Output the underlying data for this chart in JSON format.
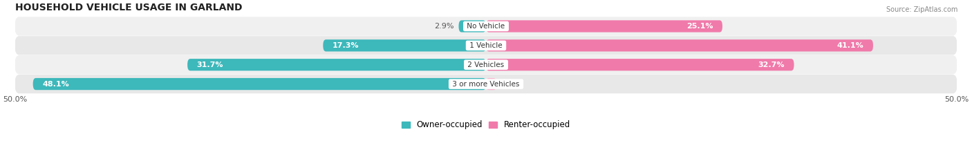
{
  "title": "HOUSEHOLD VEHICLE USAGE IN GARLAND",
  "source": "Source: ZipAtlas.com",
  "categories": [
    "No Vehicle",
    "1 Vehicle",
    "2 Vehicles",
    "3 or more Vehicles"
  ],
  "owner_values": [
    2.9,
    17.3,
    31.7,
    48.1
  ],
  "renter_values": [
    25.1,
    41.1,
    32.7,
    1.1
  ],
  "owner_color": "#3db8bb",
  "renter_color": "#f07aaa",
  "renter_color_light": "#f9b8d0",
  "row_bg_color": "#ececec",
  "row_bg_color2": "#e2e2e2",
  "track_color": "#e8e8e8",
  "x_min": -50.0,
  "x_max": 50.0,
  "legend_owner": "Owner-occupied",
  "legend_renter": "Renter-occupied",
  "title_fontsize": 10,
  "label_fontsize": 8,
  "value_fontsize": 8,
  "bar_height": 0.62,
  "figsize": [
    14.06,
    2.33
  ],
  "dpi": 100
}
